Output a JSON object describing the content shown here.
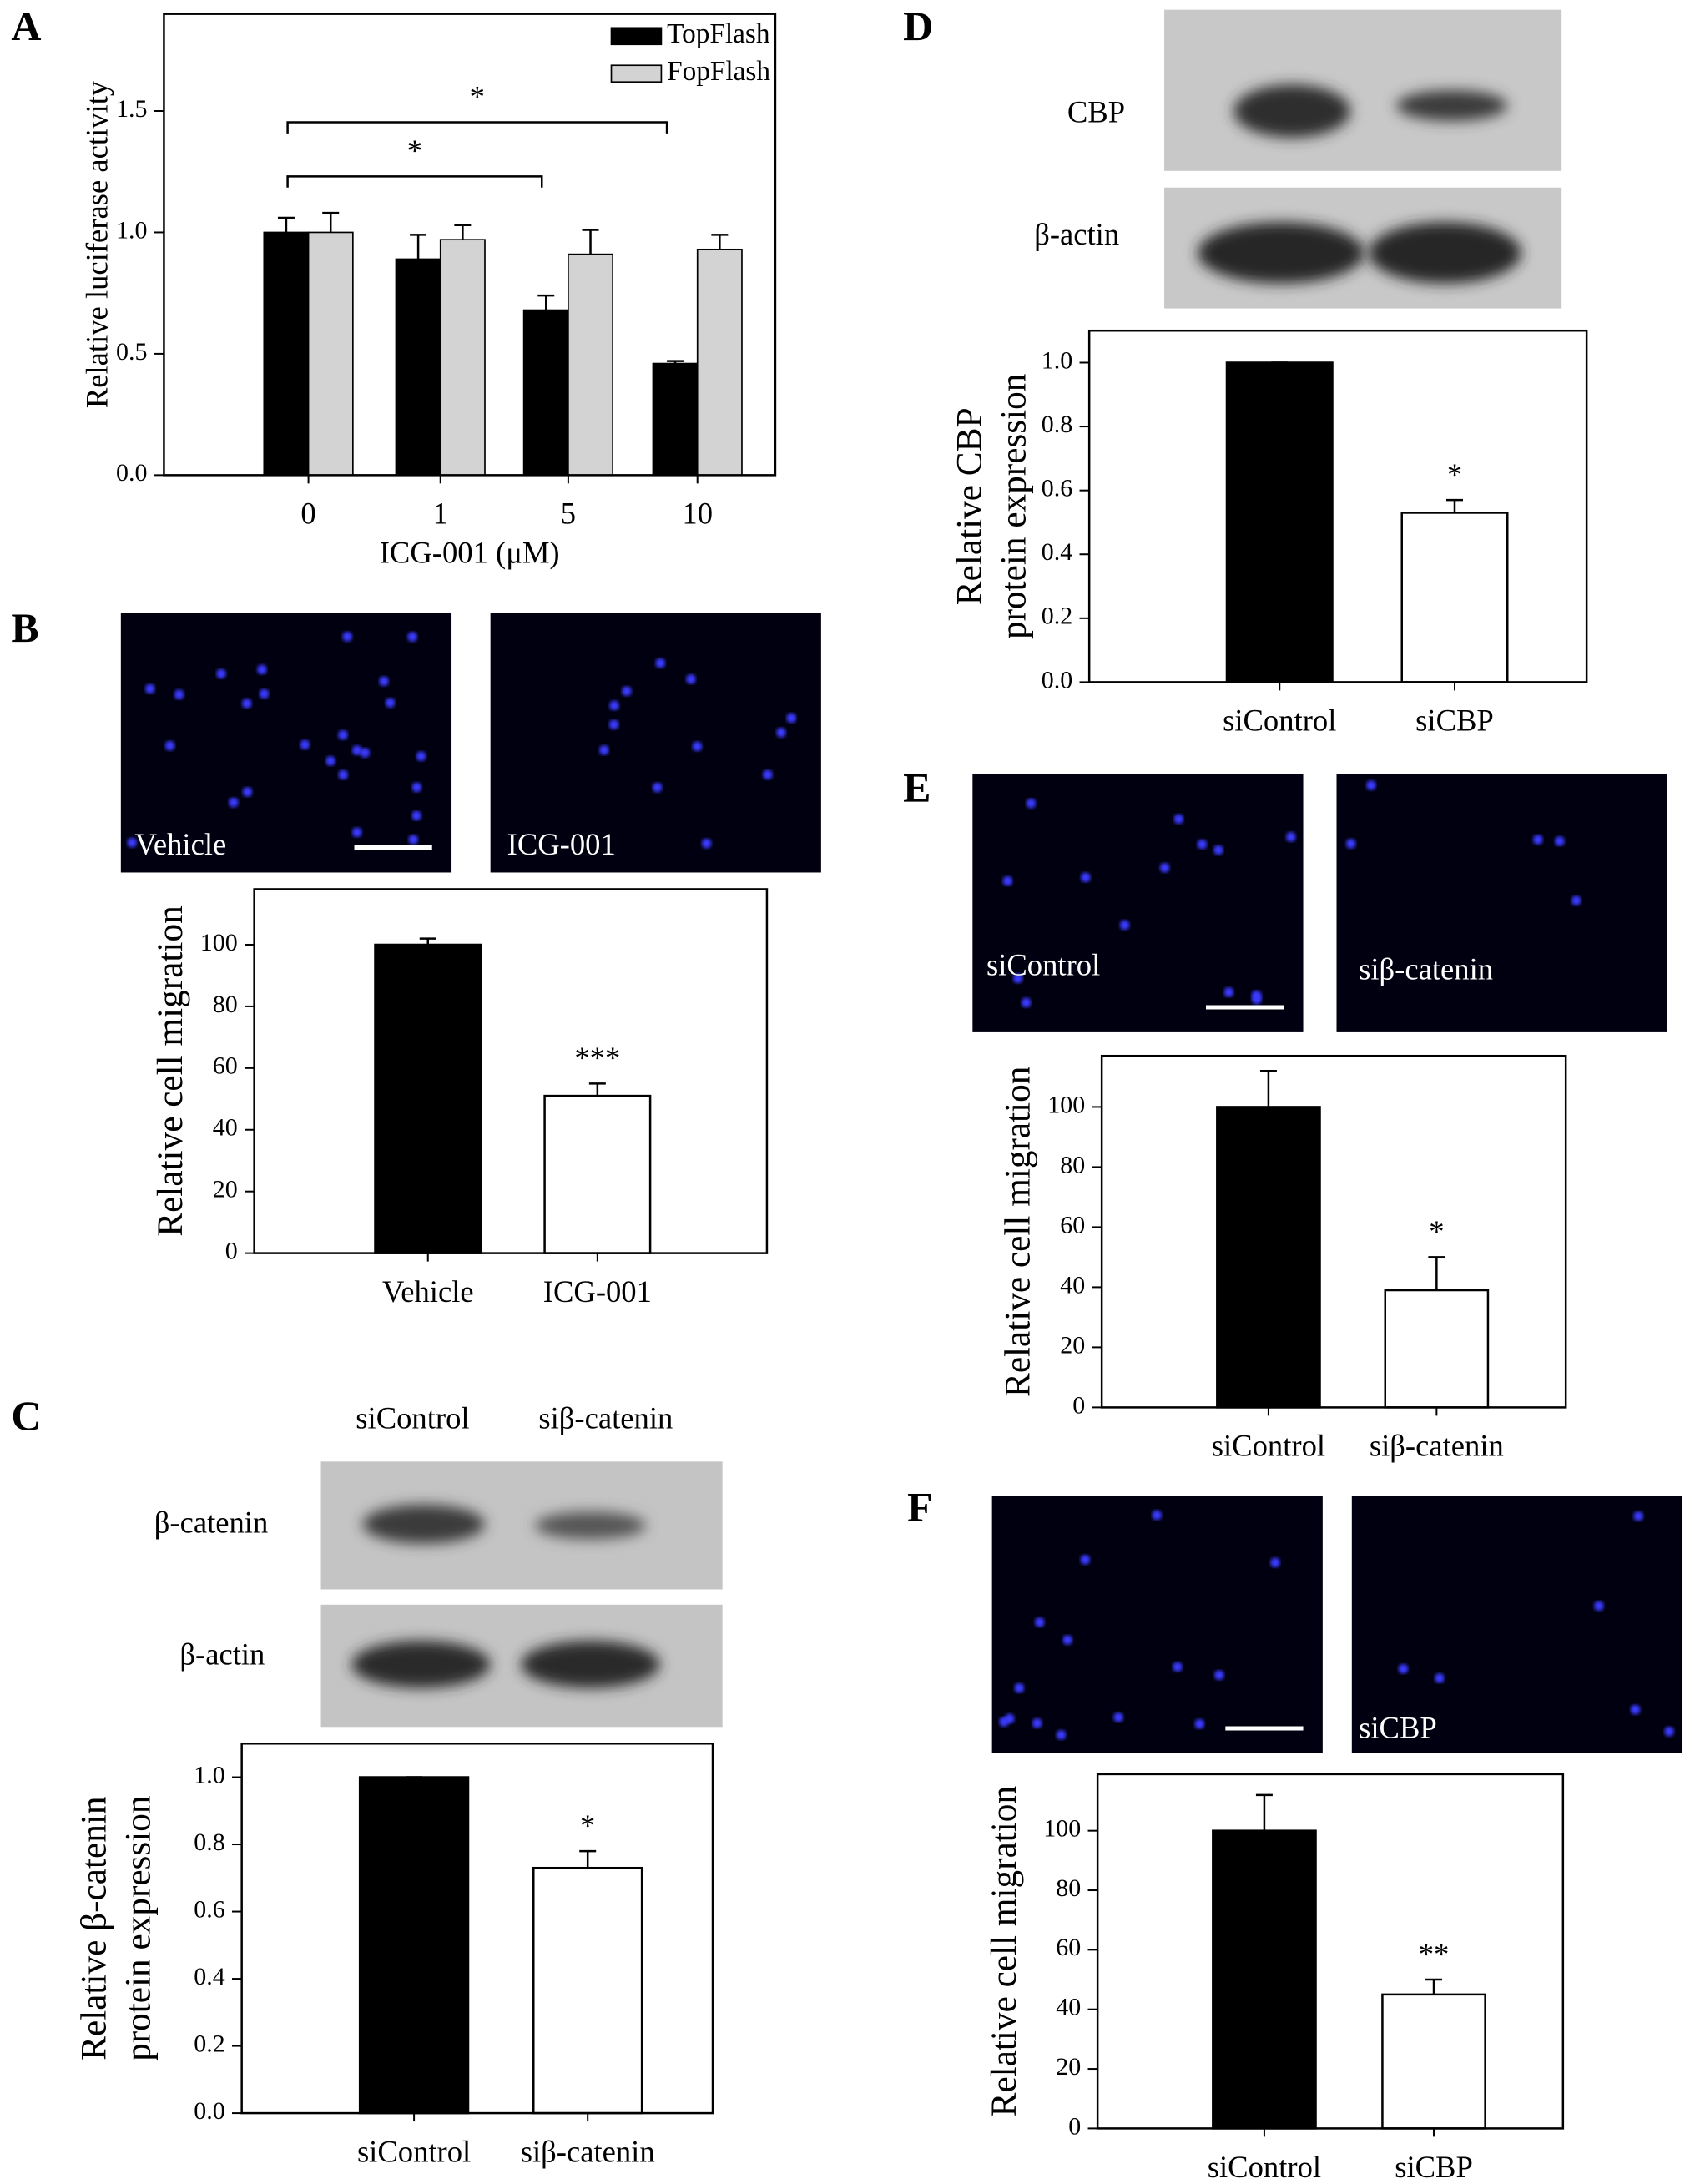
{
  "chart_data": [
    {
      "type": "bar",
      "ylabel": "Relative luciferase activity",
      "xlabel": "ICG-001 (μM)",
      "categories": [
        "0",
        "1",
        "5",
        "10"
      ],
      "series": [
        {
          "name": "TopFlash",
          "color": "#000000",
          "values": [
            1.0,
            0.89,
            0.68,
            0.46
          ],
          "errors": [
            0.06,
            0.1,
            0.06,
            0.01
          ]
        },
        {
          "name": "FopFlash",
          "color": "#d3d3d3",
          "values": [
            1.0,
            0.97,
            0.91,
            0.93
          ],
          "errors": [
            0.08,
            0.06,
            0.1,
            0.06
          ]
        }
      ],
      "ylim": [
        0,
        1.9
      ],
      "yticks": [
        {
          "value": 0,
          "label": "0.0"
        },
        {
          "value": 0.5,
          "label": "0.5"
        },
        {
          "value": 1,
          "label": "1.0"
        },
        {
          "value": 1.5,
          "label": "1.5"
        }
      ],
      "legend": "upper right",
      "annotations": [
        "*",
        "*"
      ]
    },
    {
      "type": "bar",
      "ylabel": "Relative cell migration",
      "categories": [
        "Vehicle",
        "ICG-001"
      ],
      "values": [
        100,
        51
      ],
      "errors": [
        2,
        4
      ],
      "colors": [
        "#000000",
        "#ffffff"
      ],
      "ylim": [
        0,
        118
      ],
      "yticks": [
        0,
        20,
        40,
        60,
        80,
        100
      ],
      "annotations": [
        "***"
      ]
    },
    {
      "type": "bar",
      "ylabel": [
        "Relative β-catenin",
        "protein expression"
      ],
      "categories": [
        "siControl",
        "siβ-catenin"
      ],
      "values": [
        1.0,
        0.73
      ],
      "errors": [
        0,
        0.05
      ],
      "colors": [
        "#000000",
        "#ffffff"
      ],
      "ylim": [
        0,
        1.1
      ],
      "yticks": [
        {
          "value": 0,
          "label": "0.0"
        },
        {
          "value": 0.2,
          "label": "0.2"
        },
        {
          "value": 0.4,
          "label": "0.4"
        },
        {
          "value": 0.6,
          "label": "0.6"
        },
        {
          "value": 0.8,
          "label": "0.8"
        },
        {
          "value": 1,
          "label": "1.0"
        }
      ],
      "annotations": [
        "*"
      ]
    },
    {
      "type": "bar",
      "ylabel": [
        "Relative CBP",
        "protein expression"
      ],
      "categories": [
        "siControl",
        "siCBP"
      ],
      "values": [
        1.0,
        0.53
      ],
      "errors": [
        0,
        0.04
      ],
      "colors": [
        "#000000",
        "#ffffff"
      ],
      "ylim": [
        0,
        1.1
      ],
      "yticks": [
        {
          "value": 0,
          "label": "0.0"
        },
        {
          "value": 0.2,
          "label": "0.2"
        },
        {
          "value": 0.4,
          "label": "0.4"
        },
        {
          "value": 0.6,
          "label": "0.6"
        },
        {
          "value": 0.8,
          "label": "0.8"
        },
        {
          "value": 1,
          "label": "1.0"
        }
      ],
      "annotations": [
        "*"
      ]
    },
    {
      "type": "bar",
      "ylabel": "Relative cell migration",
      "categories": [
        "siControl",
        "siβ-catenin"
      ],
      "values": [
        100,
        39
      ],
      "errors": [
        12,
        11
      ],
      "colors": [
        "#000000",
        "#ffffff"
      ],
      "ylim": [
        0,
        117
      ],
      "yticks": [
        0,
        20,
        40,
        60,
        80,
        100
      ],
      "annotations": [
        "*"
      ]
    },
    {
      "type": "bar",
      "ylabel": "Relative cell migration",
      "categories": [
        "siControl",
        "siCBP"
      ],
      "values": [
        100,
        45
      ],
      "errors": [
        12,
        5
      ],
      "colors": [
        "#000000",
        "#ffffff"
      ],
      "ylim": [
        0,
        119
      ],
      "yticks": [
        0,
        20,
        40,
        60,
        80,
        100
      ],
      "annotations": [
        "**"
      ]
    }
  ],
  "figure": {
    "panel_labels": [
      "A",
      "B",
      "C",
      "D",
      "E",
      "F"
    ],
    "images": {
      "B": [
        "Vehicle",
        "ICG-001"
      ],
      "E": [
        "siControl",
        "siβ-catenin"
      ],
      "F": [
        "siCBP"
      ]
    },
    "blots": {
      "C": {
        "lanes": [
          "siControl",
          "siβ-catenin"
        ],
        "rows": [
          "β-catenin",
          "β-actin"
        ]
      },
      "D": {
        "lanes": [
          "siControl",
          "siCBP"
        ],
        "rows": [
          "CBP",
          "β-actin"
        ]
      }
    }
  }
}
